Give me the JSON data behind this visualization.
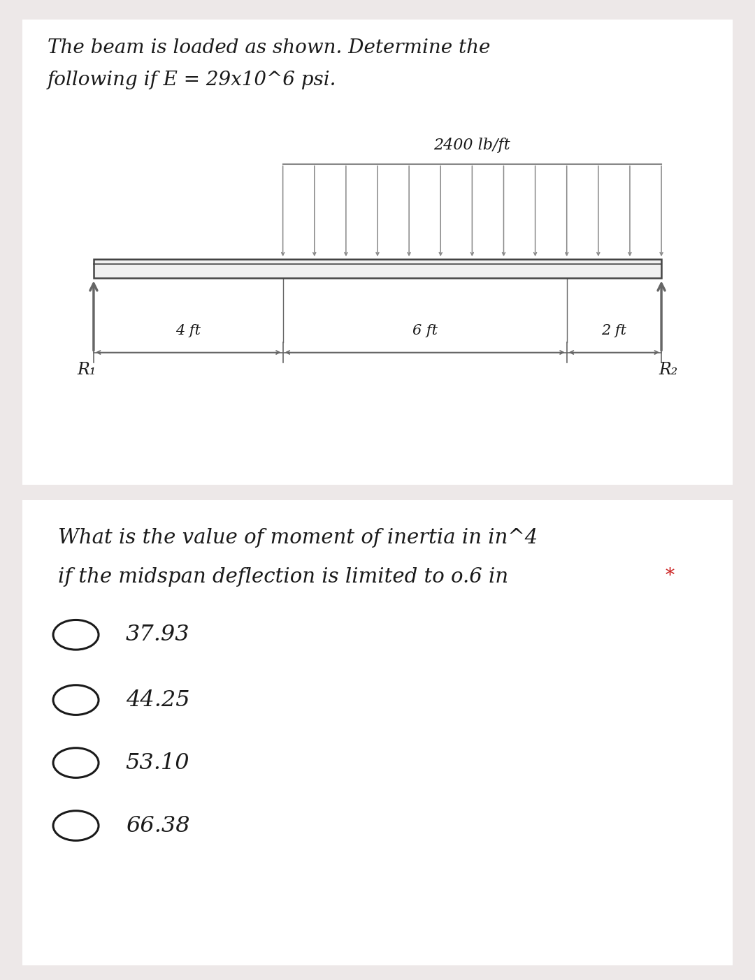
{
  "bg_color": "#ede8e8",
  "card1_color": "#ffffff",
  "card2_color": "#ffffff",
  "title_line1": "The beam is loaded as shown. Determine the",
  "title_line2": "following if E = 29x10^6 psi.",
  "load_label": "2400 lb/ft",
  "dim1": "4 ft",
  "dim2": "6 ft",
  "dim3": "2 ft",
  "r1_label": "R₁",
  "r2_label": "R₂",
  "question_line1": "What is the value of moment of inertia in in^4",
  "question_line2": "if the midspan deflection is limited to o.6 in",
  "asterisk": "*",
  "options": [
    "37.93",
    "44.25",
    "53.10",
    "66.38"
  ],
  "text_color": "#1a1a1a",
  "beam_color": "#444444",
  "arrow_color": "#666666",
  "load_color": "#888888",
  "font_size_title": 20,
  "font_size_question": 21,
  "font_size_options": 23,
  "font_size_labels": 15,
  "font_size_load": 16,
  "font_size_R": 17
}
